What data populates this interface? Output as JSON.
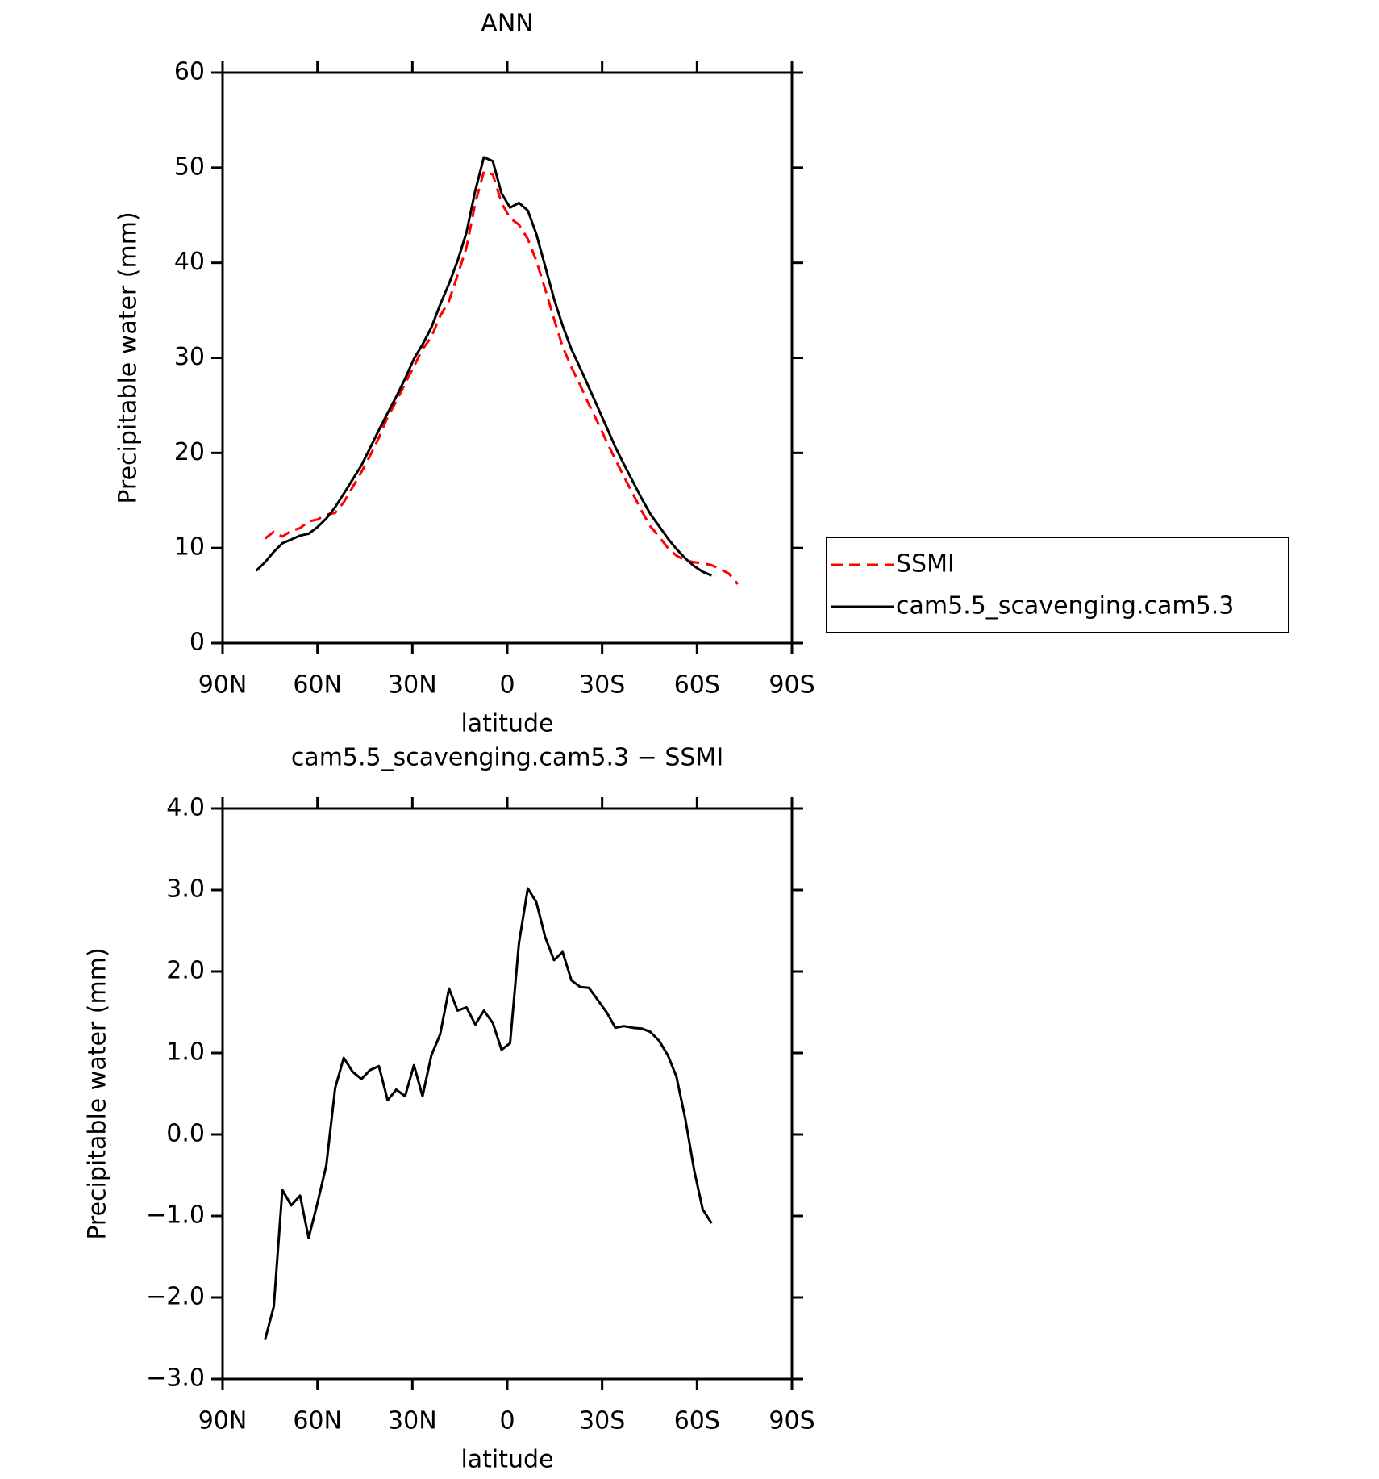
{
  "chart_data": [
    {
      "type": "line",
      "title": "ANN",
      "xlabel": "latitude",
      "ylabel": "Precipitable water (mm)",
      "xlim": [
        90,
        -90
      ],
      "xticks": [
        {
          "value": 90,
          "label": "90N"
        },
        {
          "value": 60,
          "label": "60N"
        },
        {
          "value": 30,
          "label": "30N"
        },
        0,
        {
          "value": -30,
          "label": "30S"
        },
        {
          "value": -60,
          "label": "60S"
        },
        {
          "value": -90,
          "label": "90S"
        }
      ],
      "ylim": [
        0,
        60
      ],
      "yticks": [
        0,
        10,
        20,
        30,
        40,
        50,
        60
      ],
      "legend": "right",
      "x": [
        79.4,
        76.6,
        73.8,
        71.1,
        68.3,
        65.5,
        62.8,
        60.0,
        57.2,
        54.4,
        51.7,
        48.9,
        46.1,
        43.4,
        40.6,
        37.8,
        35.1,
        32.3,
        29.5,
        26.8,
        24.0,
        21.2,
        18.4,
        15.7,
        12.9,
        10.1,
        7.4,
        4.6,
        1.8,
        -0.9,
        -3.7,
        -6.5,
        -9.2,
        -12.0,
        -14.8,
        -17.5,
        -20.3,
        -23.1,
        -25.8,
        -28.6,
        -31.4,
        -34.2,
        -36.9,
        -39.7,
        -42.5,
        -45.2,
        -48.0,
        -50.8,
        -53.5,
        -56.3,
        -59.1,
        -61.8,
        -64.6,
        -67.3,
        -70.1,
        -72.9
      ],
      "series": [
        {
          "name": "SSMI",
          "color": "#ff0000",
          "style": "dashed",
          "values": [
            null,
            11.0,
            11.7,
            11.2,
            11.8,
            12.1,
            12.8,
            13.0,
            13.5,
            13.7,
            14.8,
            16.4,
            18.0,
            19.7,
            21.6,
            23.8,
            25.4,
            27.3,
            29.1,
            30.9,
            32.2,
            34.4,
            36.0,
            38.7,
            41.6,
            46.3,
            49.6,
            49.3,
            46.3,
            44.7,
            44.0,
            42.5,
            40.2,
            37.2,
            34.1,
            31.2,
            29.0,
            27.1,
            25.1,
            23.2,
            21.2,
            19.3,
            17.5,
            15.7,
            13.9,
            12.3,
            11.2,
            10.0,
            9.2,
            8.7,
            8.5,
            8.4,
            8.2,
            7.8,
            7.3,
            6.2
          ]
        },
        {
          "name": "cam5.5_scavenging.cam5.3",
          "color": "#000000",
          "style": "solid",
          "values": [
            7.6,
            8.5,
            9.6,
            10.5,
            10.9,
            11.3,
            11.5,
            12.2,
            13.1,
            14.3,
            15.7,
            17.2,
            18.7,
            20.5,
            22.4,
            24.2,
            25.9,
            27.8,
            29.9,
            31.4,
            33.2,
            35.6,
            37.8,
            40.2,
            43.2,
            47.6,
            51.1,
            50.7,
            47.3,
            45.8,
            46.3,
            45.5,
            43.0,
            39.6,
            36.2,
            33.4,
            30.9,
            28.9,
            26.9,
            24.8,
            22.7,
            20.6,
            18.8,
            17.0,
            15.2,
            13.6,
            12.3,
            11.0,
            9.9,
            8.9,
            8.1,
            7.5,
            7.1,
            null,
            null,
            null
          ]
        }
      ]
    },
    {
      "type": "line",
      "title": "cam5.5_scavenging.cam5.3 − SSMI",
      "xlabel": "latitude",
      "ylabel": "Precipitable water (mm)",
      "xlim": [
        90,
        -90
      ],
      "xticks": [
        {
          "value": 90,
          "label": "90N"
        },
        {
          "value": 60,
          "label": "60N"
        },
        {
          "value": 30,
          "label": "30N"
        },
        0,
        {
          "value": -30,
          "label": "30S"
        },
        {
          "value": -60,
          "label": "60S"
        },
        {
          "value": -90,
          "label": "90S"
        }
      ],
      "ylim": [
        -3,
        4
      ],
      "yticks": [
        {
          "value": -3,
          "label": "−3.0"
        },
        {
          "value": -2,
          "label": "−2.0"
        },
        {
          "value": -1,
          "label": "−1.0"
        },
        {
          "value": 0,
          "label": "0.0"
        },
        {
          "value": 1,
          "label": "1.0"
        },
        {
          "value": 2,
          "label": "2.0"
        },
        {
          "value": 3,
          "label": "3.0"
        },
        {
          "value": 4,
          "label": "4.0"
        }
      ],
      "x": [
        76.6,
        73.8,
        71.1,
        68.3,
        65.5,
        62.8,
        60.0,
        57.2,
        54.4,
        51.7,
        48.9,
        46.1,
        43.4,
        40.6,
        37.8,
        35.1,
        32.3,
        29.5,
        26.8,
        24.0,
        21.2,
        18.4,
        15.7,
        12.9,
        10.1,
        7.4,
        4.6,
        1.8,
        -0.9,
        -3.7,
        -6.5,
        -9.2,
        -12.0,
        -14.8,
        -17.5,
        -20.3,
        -23.1,
        -25.8,
        -28.6,
        -31.4,
        -34.2,
        -36.9,
        -39.7,
        -42.5,
        -45.2,
        -48.0,
        -50.8,
        -53.5,
        -56.3,
        -59.1,
        -61.8,
        -64.6
      ],
      "series": [
        {
          "color": "#000000",
          "style": "solid",
          "values": [
            -2.52,
            -2.11,
            -0.68,
            -0.87,
            -0.75,
            -1.27,
            -0.84,
            -0.38,
            0.57,
            0.94,
            0.77,
            0.68,
            0.79,
            0.84,
            0.42,
            0.55,
            0.47,
            0.85,
            0.47,
            0.97,
            1.23,
            1.79,
            1.52,
            1.56,
            1.35,
            1.52,
            1.37,
            1.04,
            1.12,
            2.35,
            3.02,
            2.85,
            2.42,
            2.14,
            2.24,
            1.89,
            1.81,
            1.8,
            1.65,
            1.5,
            1.31,
            1.33,
            1.31,
            1.3,
            1.26,
            1.15,
            0.97,
            0.71,
            0.19,
            -0.44,
            -0.92,
            -1.09
          ]
        }
      ]
    }
  ]
}
